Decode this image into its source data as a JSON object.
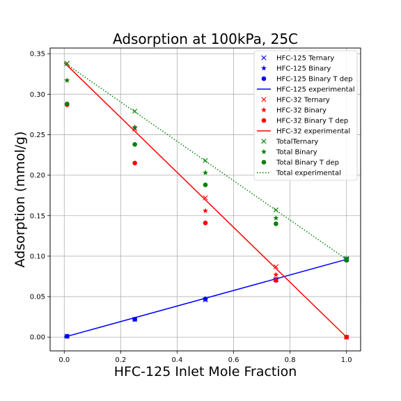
{
  "chart_data": {
    "type": "scatter",
    "title": "Adsorption at 100kPa, 25C",
    "xlabel": "HFC-125 Inlet Mole Fraction",
    "ylabel": "Adsorption (mmol/g)",
    "xlim": [
      -0.05,
      1.05
    ],
    "ylim": [
      -0.017,
      0.357
    ],
    "xticks": [
      "0.0",
      "0.2",
      "0.4",
      "0.6",
      "0.8",
      "1.0"
    ],
    "xtick_values": [
      0.0,
      0.2,
      0.4,
      0.6,
      0.8,
      1.0
    ],
    "yticks": [
      "0.00",
      "0.05",
      "0.10",
      "0.15",
      "0.20",
      "0.25",
      "0.30",
      "0.35"
    ],
    "ytick_values": [
      0.0,
      0.05,
      0.1,
      0.15,
      0.2,
      0.25,
      0.3,
      0.35
    ],
    "grid": true,
    "legend_position": "top-right",
    "series": [
      {
        "name": "HFC-125 Ternary",
        "marker": "x",
        "color": "#0000ff",
        "x": [
          0.01,
          0.25,
          0.5,
          0.75,
          1.0
        ],
        "y": [
          0.001,
          0.022,
          0.046,
          0.071,
          0.096
        ]
      },
      {
        "name": "HFC-125 Binary",
        "marker": "star",
        "color": "#0000ff",
        "x": [
          0.01,
          0.25,
          0.5,
          0.75,
          1.0
        ],
        "y": [
          0.001,
          0.022,
          0.047,
          0.071,
          0.096
        ]
      },
      {
        "name": "HFC-125 Binary T dep",
        "marker": "circle",
        "color": "#0000ff",
        "x": [
          0.01,
          0.25,
          0.5,
          0.75,
          1.0
        ],
        "y": [
          0.001,
          0.022,
          0.047,
          0.071,
          0.095
        ]
      },
      {
        "name": "HFC-125 experimental",
        "marker": "line",
        "color": "#0000ff",
        "linestyle": "solid",
        "x": [
          0.0,
          1.0
        ],
        "y": [
          0.0,
          0.096
        ]
      },
      {
        "name": "HFC-32 Ternary",
        "marker": "x",
        "color": "#ff0000",
        "x": [
          0.01,
          0.25,
          0.5,
          0.75,
          1.0
        ],
        "y": [
          0.338,
          0.257,
          0.172,
          0.087,
          0.0
        ]
      },
      {
        "name": "HFC-32 Binary",
        "marker": "star",
        "color": "#ff0000",
        "x": [
          0.01,
          0.25,
          0.5,
          0.75,
          1.0
        ],
        "y": [
          0.317,
          0.259,
          0.156,
          0.077,
          0.0
        ]
      },
      {
        "name": "HFC-32 Binary T dep",
        "marker": "circle",
        "color": "#ff0000",
        "x": [
          0.01,
          0.25,
          0.5,
          0.75,
          1.0
        ],
        "y": [
          0.287,
          0.215,
          0.141,
          0.07,
          0.0
        ]
      },
      {
        "name": "HFC-32 experimental",
        "marker": "line",
        "color": "#ff0000",
        "linestyle": "solid",
        "x": [
          0.0,
          1.0
        ],
        "y": [
          0.339,
          0.0
        ]
      },
      {
        "name": "TotalTernary",
        "marker": "x",
        "color": "#008000",
        "x": [
          0.01,
          0.25,
          0.5,
          0.75,
          1.0
        ],
        "y": [
          0.338,
          0.279,
          0.218,
          0.157,
          0.097
        ]
      },
      {
        "name": "Total Binary",
        "marker": "star",
        "color": "#008000",
        "x": [
          0.01,
          0.25,
          0.5,
          0.75,
          1.0
        ],
        "y": [
          0.317,
          0.259,
          0.203,
          0.147,
          0.097
        ]
      },
      {
        "name": "Total Binary T dep",
        "marker": "circle",
        "color": "#008000",
        "x": [
          0.01,
          0.25,
          0.5,
          0.75,
          1.0
        ],
        "y": [
          0.288,
          0.238,
          0.188,
          0.14,
          0.095
        ]
      },
      {
        "name": "Total experimental",
        "marker": "line",
        "color": "#008000",
        "linestyle": "dotted",
        "x": [
          0.0,
          1.0
        ],
        "y": [
          0.339,
          0.096
        ]
      }
    ]
  }
}
